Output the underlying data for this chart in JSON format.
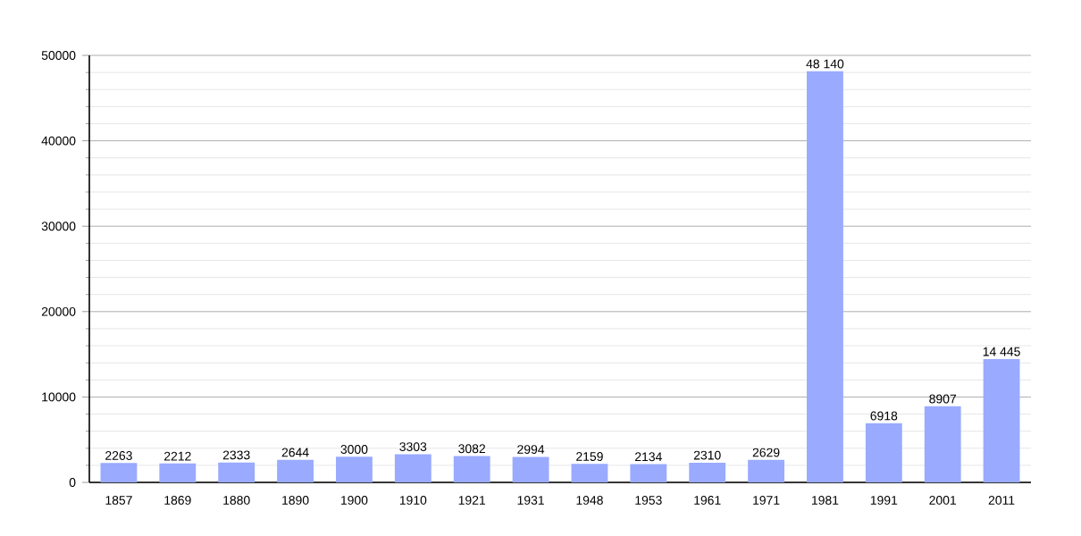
{
  "chart_data": {
    "type": "bar",
    "categories": [
      "1857",
      "1869",
      "1880",
      "1890",
      "1900",
      "1910",
      "1921",
      "1931",
      "1948",
      "1953",
      "1961",
      "1971",
      "1981",
      "1991",
      "2001",
      "2011"
    ],
    "values": [
      2263,
      2212,
      2333,
      2644,
      3000,
      3303,
      3082,
      2994,
      2159,
      2134,
      2310,
      2629,
      48140,
      6918,
      8907,
      14445
    ],
    "value_labels": [
      "2263",
      "2212",
      "2333",
      "2644",
      "3000",
      "3303",
      "3082",
      "2994",
      "2159",
      "2134",
      "2310",
      "2629",
      "48 140",
      "6918",
      "8907",
      "14 445"
    ],
    "color": "#99aaff",
    "ylim": [
      0,
      50000
    ],
    "yticks": [
      0,
      {
        "value": 2000,
        "label": null
      },
      {
        "value": 4000,
        "label": null
      },
      {
        "value": 6000,
        "label": null
      },
      {
        "value": 8000,
        "label": null
      },
      10000,
      {
        "value": 12000,
        "label": null
      },
      {
        "value": 14000,
        "label": null
      },
      {
        "value": 16000,
        "label": null
      },
      {
        "value": 18000,
        "label": null
      },
      20000,
      {
        "value": 22000,
        "label": null
      },
      {
        "value": 24000,
        "label": null
      },
      {
        "value": 26000,
        "label": null
      },
      {
        "value": 28000,
        "label": null
      },
      30000,
      {
        "value": 32000,
        "label": null
      },
      {
        "value": 34000,
        "label": null
      },
      {
        "value": 36000,
        "label": null
      },
      {
        "value": 38000,
        "label": null
      },
      40000,
      {
        "value": 42000,
        "label": null
      },
      {
        "value": 44000,
        "label": null
      },
      {
        "value": 46000,
        "label": null
      },
      {
        "value": 48000,
        "label": null
      },
      50000
    ],
    "grid": true
  }
}
